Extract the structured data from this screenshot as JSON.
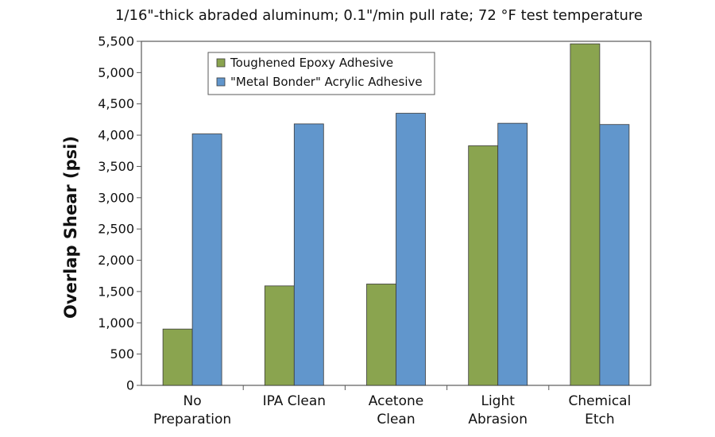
{
  "chart_data": {
    "type": "bar",
    "subtitle": "1/16\"-thick abraded aluminum; 0.1\"/min pull rate; 72 °F test temperature",
    "ylabel": "Overlap Shear (psi)",
    "xlabel": "",
    "categories": [
      [
        "No",
        "Preparation"
      ],
      [
        "IPA Clean"
      ],
      [
        "Acetone",
        "Clean"
      ],
      [
        "Light",
        "Abrasion"
      ],
      [
        "Chemical",
        "Etch"
      ]
    ],
    "series": [
      {
        "name": "Toughened Epoxy Adhesive",
        "color": "#8aa44f",
        "values": [
          900,
          1590,
          1620,
          3830,
          5460
        ]
      },
      {
        "name": "\"Metal Bonder\" Acrylic Adhesive",
        "color": "#6196cc",
        "values": [
          4020,
          4180,
          4350,
          4190,
          4170
        ]
      }
    ],
    "ylim": [
      0,
      5500
    ],
    "ytick_step": 500,
    "ytick_labels": [
      "0",
      "500",
      "1,000",
      "1,500",
      "2,000",
      "2,500",
      "3,000",
      "3,500",
      "4,000",
      "4,500",
      "5,000",
      "5,500"
    ],
    "grid": false,
    "legend_position": "top-left"
  }
}
